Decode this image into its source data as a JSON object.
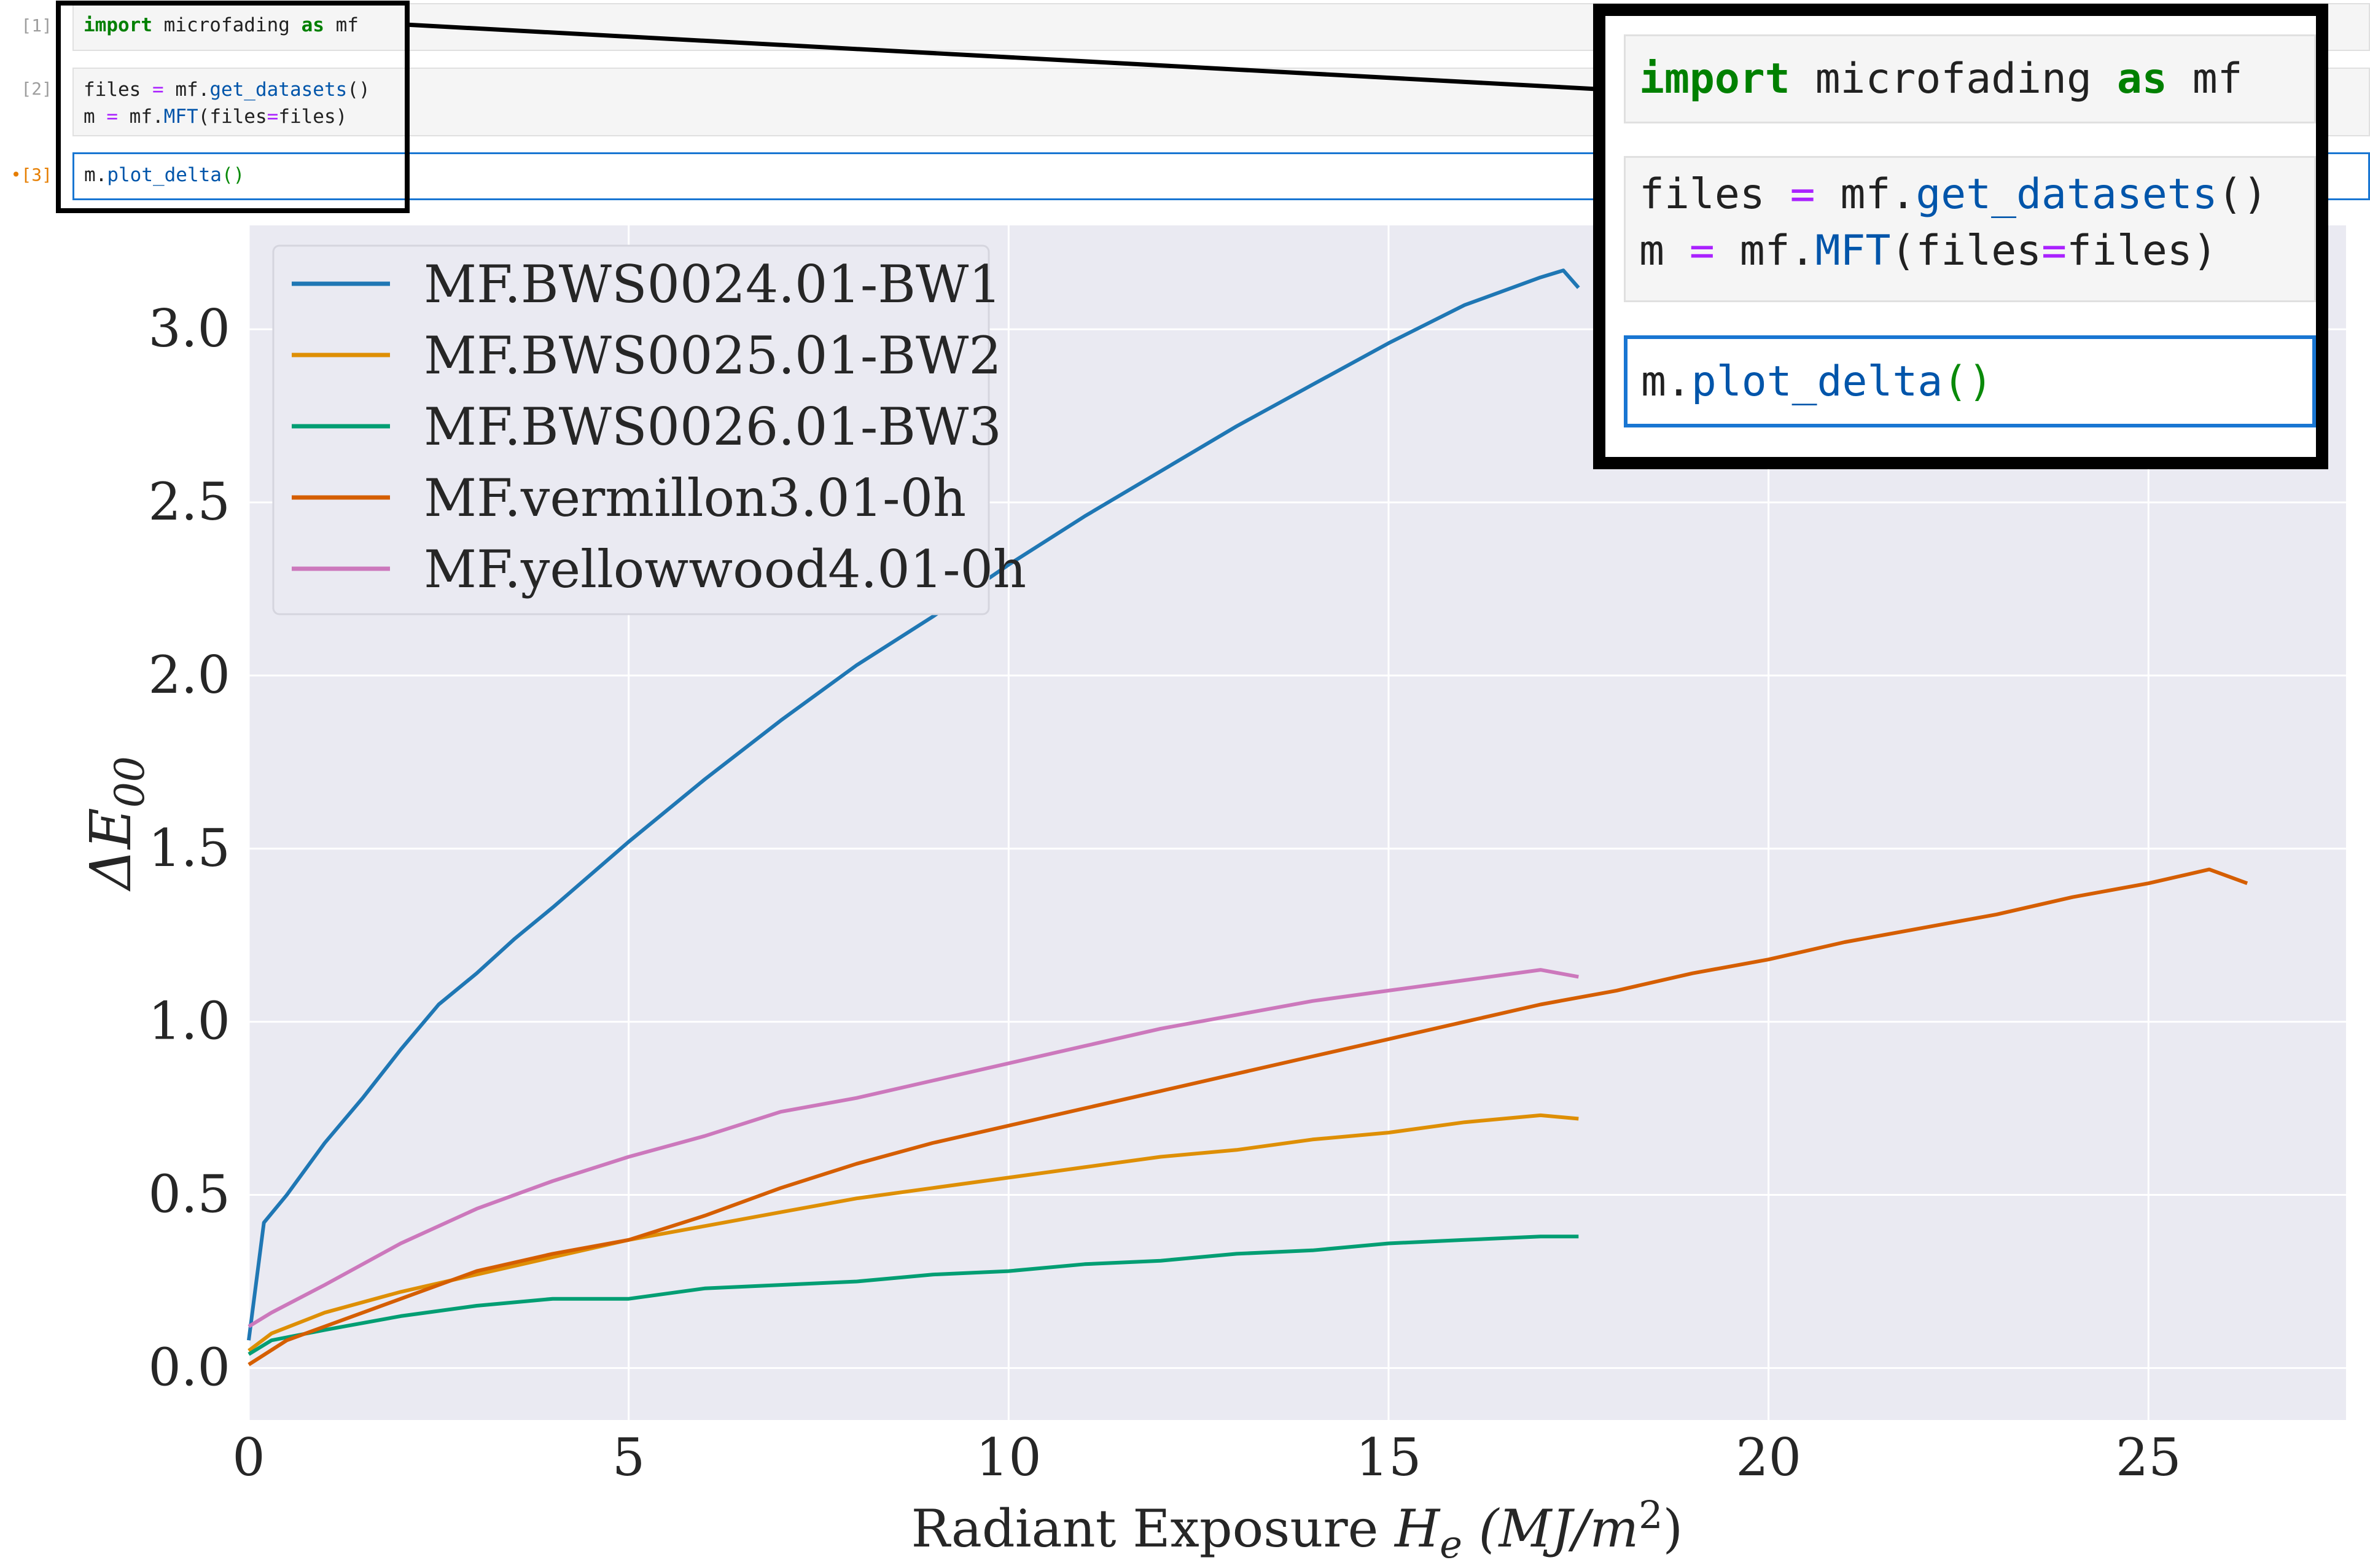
{
  "notebook": {
    "cells": [
      {
        "prompt": "[1]",
        "tokens": [
          {
            "text": "import",
            "cls": "kw"
          },
          {
            "text": " microfading ",
            "cls": ""
          },
          {
            "text": "as",
            "cls": "kw"
          },
          {
            "text": " mf",
            "cls": ""
          }
        ]
      },
      {
        "prompt": "[2]",
        "tokens": [
          {
            "text": "files ",
            "cls": ""
          },
          {
            "text": "=",
            "cls": "op"
          },
          {
            "text": " mf.",
            "cls": ""
          },
          {
            "text": "get_datasets",
            "cls": "fn"
          },
          {
            "text": "()\nm ",
            "cls": ""
          },
          {
            "text": "=",
            "cls": "op"
          },
          {
            "text": " mf.",
            "cls": ""
          },
          {
            "text": "MFT",
            "cls": "fn"
          },
          {
            "text": "(files",
            "cls": ""
          },
          {
            "text": "=",
            "cls": "op"
          },
          {
            "text": "files)",
            "cls": ""
          }
        ]
      },
      {
        "prompt": "•[3]",
        "tokens": [
          {
            "text": "m.",
            "cls": ""
          },
          {
            "text": "plot_delta",
            "cls": "fn"
          },
          {
            "text": "()",
            "cls": "pr"
          }
        ]
      }
    ]
  },
  "chart_data": {
    "type": "line",
    "title": "",
    "xlabel": "Radiant Exposure",
    "xlabel_symbol": "H",
    "xlabel_sub": "e",
    "xlabel_unit_pre": "(MJ/m",
    "xlabel_unit_sup": "2",
    "xlabel_unit_post": ")",
    "ylabel": "ΔE",
    "ylabel_sub": "00",
    "xlim": [
      0,
      27.6
    ],
    "ylim": [
      -0.15,
      3.3
    ],
    "xticks": [
      0,
      5,
      10,
      15,
      20,
      25
    ],
    "yticks": [
      0.0,
      0.5,
      1.0,
      1.5,
      2.0,
      2.5,
      3.0
    ],
    "ytick_labels": [
      "0.0",
      "0.5",
      "1.0",
      "1.5",
      "2.0",
      "2.5",
      "3.0"
    ],
    "grid": true,
    "legend_position": "top-left",
    "series": [
      {
        "name": "MF.BWS0024.01-BW1",
        "color": "#1f77b4",
        "x": [
          0,
          0.2,
          0.5,
          1,
          1.5,
          2,
          2.5,
          3,
          3.5,
          4,
          5,
          6,
          7,
          8,
          9,
          10,
          11,
          12,
          13,
          14,
          15,
          16,
          17,
          17.3,
          17.5
        ],
        "y": [
          0.08,
          0.42,
          0.5,
          0.65,
          0.78,
          0.92,
          1.05,
          1.14,
          1.24,
          1.33,
          1.52,
          1.7,
          1.87,
          2.03,
          2.17,
          2.32,
          2.46,
          2.59,
          2.72,
          2.84,
          2.96,
          3.07,
          3.15,
          3.17,
          3.12
        ]
      },
      {
        "name": "MF.BWS0025.01-BW2",
        "color": "#de8f05",
        "x": [
          0,
          0.3,
          1,
          2,
          3,
          4,
          5,
          6,
          7,
          8,
          9,
          10,
          11,
          12,
          13,
          14,
          15,
          16,
          17,
          17.5
        ],
        "y": [
          0.05,
          0.1,
          0.16,
          0.22,
          0.27,
          0.32,
          0.37,
          0.41,
          0.45,
          0.49,
          0.52,
          0.55,
          0.58,
          0.61,
          0.63,
          0.66,
          0.68,
          0.71,
          0.73,
          0.72
        ]
      },
      {
        "name": "MF.BWS0026.01-BW3",
        "color": "#029e73",
        "x": [
          0,
          0.3,
          1,
          2,
          3,
          4,
          5,
          6,
          7,
          8,
          9,
          10,
          11,
          12,
          13,
          14,
          15,
          16,
          17,
          17.5
        ],
        "y": [
          0.04,
          0.08,
          0.11,
          0.15,
          0.18,
          0.2,
          0.2,
          0.23,
          0.24,
          0.25,
          0.27,
          0.28,
          0.3,
          0.31,
          0.33,
          0.34,
          0.36,
          0.37,
          0.38,
          0.38
        ]
      },
      {
        "name": "MF.vermillon3.01-0h",
        "color": "#d55e00",
        "x": [
          0,
          0.5,
          1,
          2,
          3,
          4,
          5,
          6,
          7,
          8,
          9,
          10,
          11,
          12,
          13,
          14,
          15,
          16,
          17,
          18,
          19,
          20,
          21,
          22,
          23,
          24,
          25,
          25.8,
          26.3
        ],
        "y": [
          0.01,
          0.08,
          0.12,
          0.2,
          0.28,
          0.33,
          0.37,
          0.44,
          0.52,
          0.59,
          0.65,
          0.7,
          0.75,
          0.8,
          0.85,
          0.9,
          0.95,
          1.0,
          1.05,
          1.09,
          1.14,
          1.18,
          1.23,
          1.27,
          1.31,
          1.36,
          1.4,
          1.44,
          1.4
        ]
      },
      {
        "name": "MF.yellowwood4.01-0h",
        "color": "#cc78bc",
        "x": [
          0,
          0.3,
          1,
          2,
          3,
          4,
          5,
          6,
          7,
          8,
          9,
          10,
          11,
          12,
          13,
          14,
          15,
          16,
          17,
          17.5
        ],
        "y": [
          0.12,
          0.16,
          0.24,
          0.36,
          0.46,
          0.54,
          0.61,
          0.67,
          0.74,
          0.78,
          0.83,
          0.88,
          0.93,
          0.98,
          1.02,
          1.06,
          1.09,
          1.12,
          1.15,
          1.13
        ]
      }
    ]
  }
}
